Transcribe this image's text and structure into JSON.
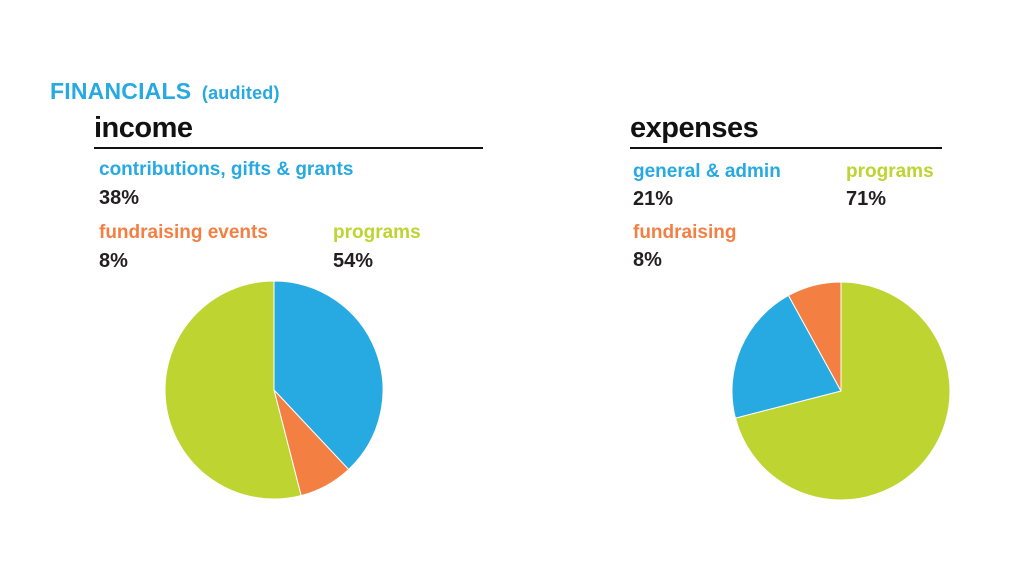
{
  "heading": {
    "title": "FINANCIALS",
    "subtitle": "(audited)"
  },
  "colors": {
    "blue": "#27a9e1",
    "orange": "#f47f43",
    "green": "#bed431",
    "dark": "#231f20"
  },
  "chart_data": [
    {
      "type": "pie",
      "title": "income",
      "slices": [
        {
          "label": "contributions, gifts & grants",
          "value": 38,
          "value_label": "38%",
          "color": "#27a9e1"
        },
        {
          "label": "fundraising events",
          "value": 8,
          "value_label": "8%",
          "color": "#f47f43"
        },
        {
          "label": "programs",
          "value": 54,
          "value_label": "54%",
          "color": "#bed431"
        }
      ]
    },
    {
      "type": "pie",
      "title": "expenses",
      "slices": [
        {
          "label": "programs",
          "value": 71,
          "value_label": "71%",
          "color": "#bed431"
        },
        {
          "label": "general & admin",
          "value": 21,
          "value_label": "21%",
          "color": "#27a9e1"
        },
        {
          "label": "fundraising",
          "value": 8,
          "value_label": "8%",
          "color": "#f47f43"
        }
      ]
    }
  ]
}
